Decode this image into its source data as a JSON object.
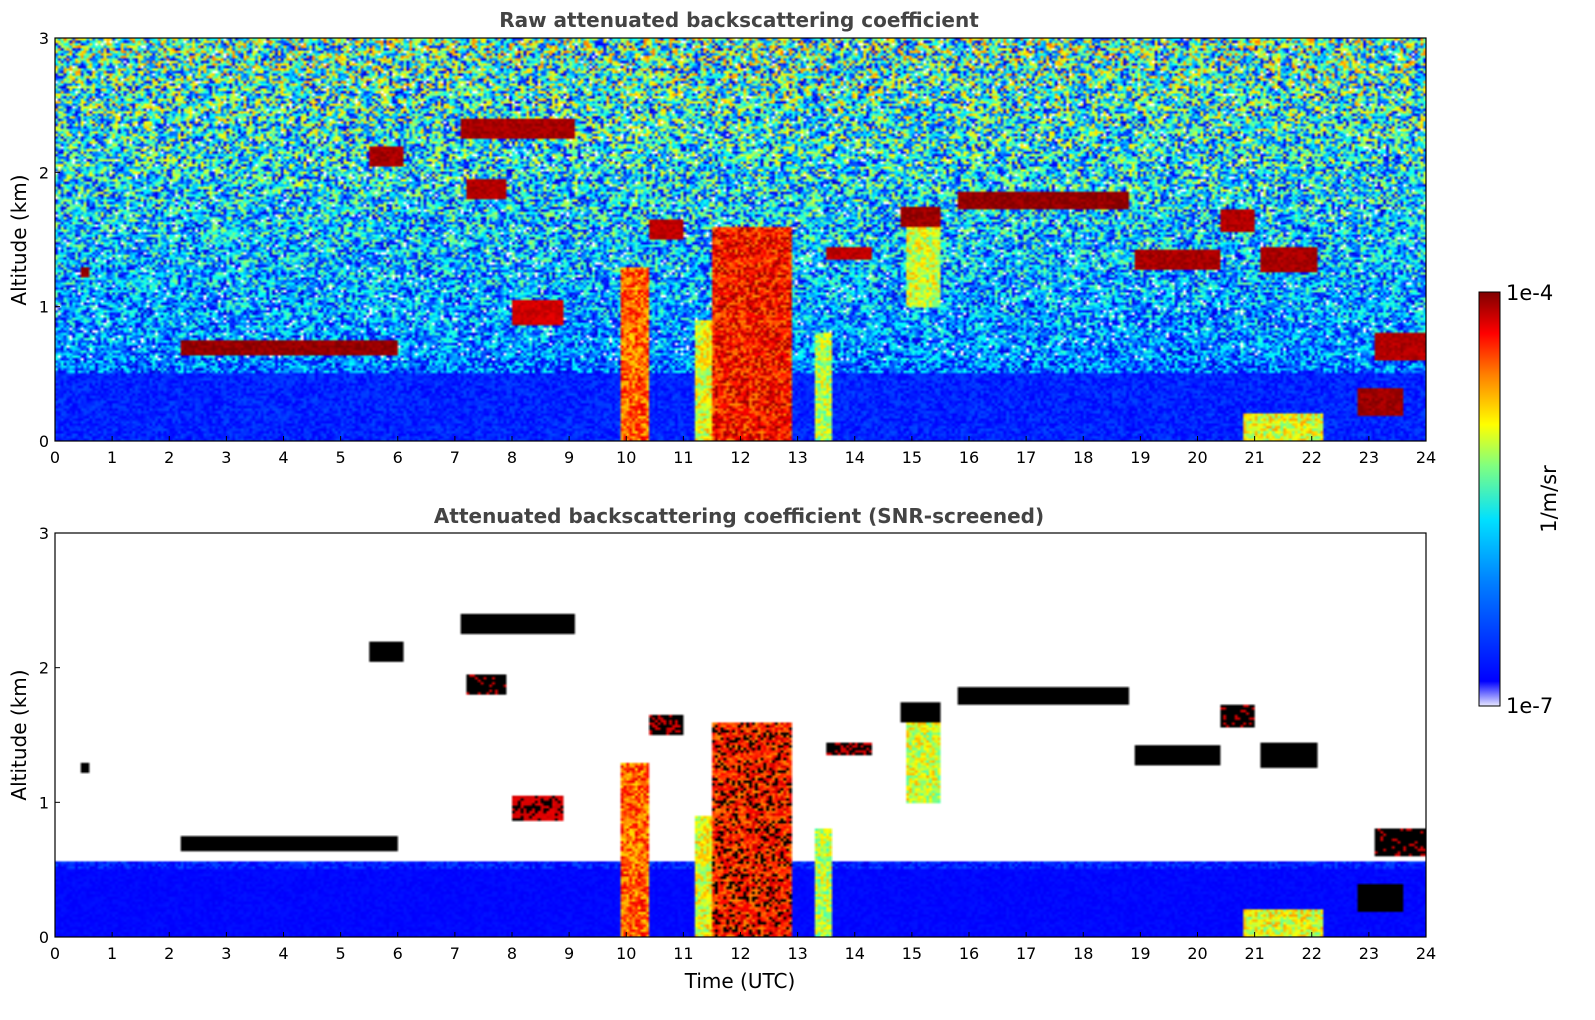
{
  "chart_data": [
    {
      "type": "heatmap",
      "title": "Raw attenuated backscattering coefficient",
      "xlabel": "",
      "ylabel": "Altitude (km)",
      "xlim": [
        0,
        24
      ],
      "ylim": [
        0,
        3
      ],
      "xticks": [
        "0",
        "1",
        "2",
        "3",
        "4",
        "5",
        "6",
        "7",
        "8",
        "9",
        "10",
        "11",
        "12",
        "13",
        "14",
        "15",
        "16",
        "17",
        "18",
        "19",
        "20",
        "21",
        "22",
        "23",
        "24"
      ],
      "yticks": [
        "0",
        "1",
        "2",
        "3"
      ],
      "screened": false,
      "features": [
        {
          "kind": "layer",
          "t0": 0.45,
          "t1": 0.6,
          "z0": 1.22,
          "z1": 1.3,
          "level": 0.98
        },
        {
          "kind": "layer",
          "t0": 2.2,
          "t1": 6.0,
          "z0": 0.63,
          "z1": 0.74,
          "level": 0.98
        },
        {
          "kind": "layer",
          "t0": 5.5,
          "t1": 6.1,
          "z0": 2.05,
          "z1": 2.2,
          "level": 0.96
        },
        {
          "kind": "layer",
          "t0": 7.1,
          "t1": 9.1,
          "z0": 2.25,
          "z1": 2.4,
          "level": 0.96
        },
        {
          "kind": "layer",
          "t0": 7.2,
          "t1": 7.9,
          "z0": 1.8,
          "z1": 1.95,
          "level": 0.95
        },
        {
          "kind": "layer",
          "t0": 8.0,
          "t1": 8.9,
          "z0": 0.85,
          "z1": 1.05,
          "level": 0.92
        },
        {
          "kind": "layer",
          "t0": 10.4,
          "t1": 11.0,
          "z0": 1.5,
          "z1": 1.65,
          "level": 0.94
        },
        {
          "kind": "layer",
          "t0": 13.5,
          "t1": 14.3,
          "z0": 1.35,
          "z1": 1.45,
          "level": 0.94
        },
        {
          "kind": "layer",
          "t0": 14.8,
          "t1": 15.5,
          "z0": 1.6,
          "z1": 1.75,
          "level": 0.97
        },
        {
          "kind": "layer",
          "t0": 15.8,
          "t1": 18.8,
          "z0": 1.72,
          "z1": 1.86,
          "level": 0.98
        },
        {
          "kind": "layer",
          "t0": 18.9,
          "t1": 20.4,
          "z0": 1.28,
          "z1": 1.42,
          "level": 0.96
        },
        {
          "kind": "layer",
          "t0": 20.4,
          "t1": 21.0,
          "z0": 1.55,
          "z1": 1.72,
          "level": 0.95
        },
        {
          "kind": "layer",
          "t0": 21.1,
          "t1": 22.1,
          "z0": 1.25,
          "z1": 1.45,
          "level": 0.96
        },
        {
          "kind": "layer",
          "t0": 22.8,
          "t1": 23.6,
          "z0": 0.18,
          "z1": 0.38,
          "level": 0.97
        },
        {
          "kind": "layer",
          "t0": 23.1,
          "t1": 24.0,
          "z0": 0.6,
          "z1": 0.8,
          "level": 0.95
        },
        {
          "kind": "column",
          "t0": 9.9,
          "t1": 10.4,
          "z0": 0.0,
          "z1": 1.3,
          "level": 0.78
        },
        {
          "kind": "column",
          "t0": 11.2,
          "t1": 11.5,
          "z0": 0.0,
          "z1": 0.9,
          "level": 0.6
        },
        {
          "kind": "column",
          "t0": 11.5,
          "t1": 12.9,
          "z0": 0.0,
          "z1": 1.6,
          "level": 0.86
        },
        {
          "kind": "column",
          "t0": 13.3,
          "t1": 13.6,
          "z0": 0.0,
          "z1": 0.8,
          "level": 0.55
        },
        {
          "kind": "column",
          "t0": 14.9,
          "t1": 15.5,
          "z0": 1.0,
          "z1": 1.6,
          "level": 0.58
        },
        {
          "kind": "column",
          "t0": 20.8,
          "t1": 22.2,
          "z0": 0.0,
          "z1": 0.2,
          "level": 0.6
        }
      ]
    },
    {
      "type": "heatmap",
      "title": "Attenuated backscattering coefficient (SNR-screened)",
      "xlabel": "Time (UTC)",
      "ylabel": "Altitude (km)",
      "xlim": [
        0,
        24
      ],
      "ylim": [
        0,
        3
      ],
      "xticks": [
        "0",
        "1",
        "2",
        "3",
        "4",
        "5",
        "6",
        "7",
        "8",
        "9",
        "10",
        "11",
        "12",
        "13",
        "14",
        "15",
        "16",
        "17",
        "18",
        "19",
        "20",
        "21",
        "22",
        "23",
        "24"
      ],
      "yticks": [
        "0",
        "1",
        "2",
        "3"
      ],
      "screened": true,
      "features": "same as panel 1, low-SNR pixels removed (white)"
    }
  ],
  "colorbar": {
    "label": "1/m/sr",
    "max_label": "1e-4",
    "min_label": "1e-7",
    "colormap": "jet",
    "colors": [
      "#e8e8ff",
      "#0000ff",
      "#0080ff",
      "#00e0ff",
      "#80ff80",
      "#ffff00",
      "#ff8000",
      "#ff0000",
      "#800000"
    ]
  }
}
